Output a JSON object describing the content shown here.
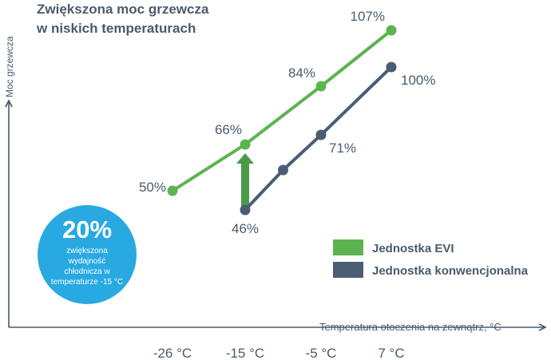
{
  "title_line1": "Zwiększona moc grzewcza",
  "title_line2": "w niskich temperaturach",
  "colors": {
    "evi": "#5cb44f",
    "conventional": "#4a5d72",
    "badge": "#29a9e1",
    "axis": "#4b5b6b",
    "arrow": "#4a9a48"
  },
  "badge": {
    "value": "20%",
    "text": "zwiększona wydajność chłodnicza w temperaturze -15 °C"
  },
  "chart_data": {
    "type": "line",
    "xlabel": "Temperatura otoczenia na zewnątrz, °C",
    "ylabel": "Moc grzewcza",
    "x_ticks": [
      "-26 °C",
      "-15 °C",
      "-5 °C",
      "7 °C"
    ],
    "legend_position": "right",
    "series": [
      {
        "name": "Jednostka EVI",
        "x": [
          -26,
          -15,
          -5,
          7
        ],
        "values": [
          50,
          66,
          84,
          107
        ],
        "labels": [
          "50%",
          "66%",
          "84%",
          "107%"
        ]
      },
      {
        "name": "Jednostka konwencjonalna",
        "x": [
          -15,
          -10,
          -5,
          7
        ],
        "values": [
          46,
          55,
          71,
          100
        ],
        "labels": [
          "46%",
          "",
          "71%",
          "100%"
        ]
      }
    ],
    "annotation": "arrow from conventional to EVI at -15 °C"
  }
}
